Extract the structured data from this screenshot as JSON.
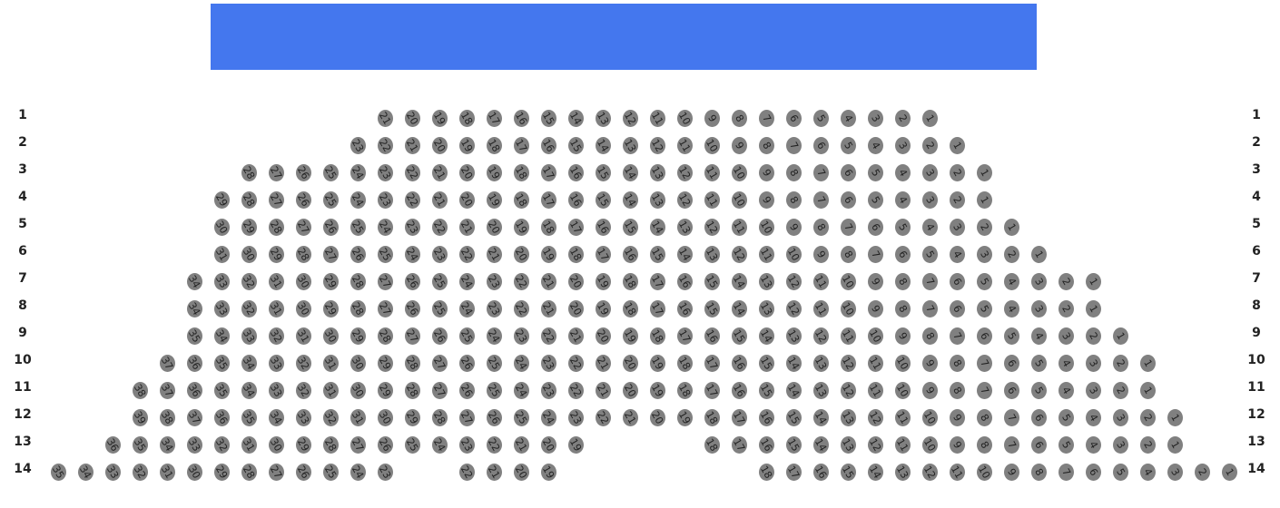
{
  "stage": {
    "color": "#4477EE"
  },
  "seat_color": "#808080",
  "rows": [
    {
      "label": "1",
      "seats": [
        null,
        null,
        null,
        null,
        null,
        null,
        null,
        null,
        null,
        null,
        null,
        null,
        21,
        20,
        19,
        18,
        17,
        16,
        15,
        14,
        13,
        12,
        11,
        10,
        9,
        8,
        7,
        6,
        5,
        4,
        3,
        2,
        1
      ]
    },
    {
      "label": "2",
      "seats": [
        null,
        null,
        null,
        null,
        null,
        null,
        null,
        null,
        null,
        null,
        null,
        23,
        22,
        21,
        20,
        19,
        18,
        17,
        16,
        15,
        14,
        13,
        12,
        11,
        10,
        9,
        8,
        7,
        6,
        5,
        4,
        3,
        2,
        1
      ]
    },
    {
      "label": "3",
      "seats": [
        null,
        null,
        null,
        null,
        null,
        null,
        null,
        28,
        27,
        26,
        25,
        24,
        23,
        22,
        21,
        20,
        19,
        18,
        17,
        16,
        15,
        14,
        13,
        12,
        11,
        10,
        9,
        8,
        7,
        6,
        5,
        4,
        3,
        2,
        1
      ]
    },
    {
      "label": "4",
      "seats": [
        null,
        null,
        null,
        null,
        null,
        null,
        29,
        28,
        27,
        26,
        25,
        24,
        23,
        22,
        21,
        20,
        19,
        18,
        17,
        16,
        15,
        14,
        13,
        12,
        11,
        10,
        9,
        8,
        7,
        6,
        5,
        4,
        3,
        2,
        1
      ]
    },
    {
      "label": "5",
      "seats": [
        null,
        null,
        null,
        null,
        null,
        null,
        30,
        29,
        28,
        27,
        26,
        25,
        24,
        23,
        22,
        21,
        20,
        19,
        18,
        17,
        16,
        15,
        14,
        13,
        12,
        11,
        10,
        9,
        8,
        7,
        6,
        5,
        4,
        3,
        2,
        1
      ]
    },
    {
      "label": "6",
      "seats": [
        null,
        null,
        null,
        null,
        null,
        null,
        31,
        30,
        29,
        28,
        27,
        26,
        25,
        24,
        23,
        22,
        21,
        20,
        19,
        18,
        17,
        16,
        15,
        14,
        13,
        12,
        11,
        10,
        9,
        8,
        7,
        6,
        5,
        4,
        3,
        2,
        1
      ]
    },
    {
      "label": "7",
      "seats": [
        null,
        null,
        null,
        null,
        null,
        34,
        33,
        32,
        31,
        30,
        29,
        28,
        27,
        26,
        25,
        24,
        23,
        22,
        21,
        20,
        19,
        18,
        17,
        16,
        15,
        14,
        13,
        12,
        11,
        10,
        9,
        8,
        7,
        6,
        5,
        4,
        3,
        2,
        1
      ]
    },
    {
      "label": "8",
      "seats": [
        null,
        null,
        null,
        null,
        null,
        34,
        33,
        32,
        31,
        30,
        29,
        28,
        27,
        26,
        25,
        24,
        23,
        22,
        21,
        20,
        19,
        18,
        17,
        16,
        15,
        14,
        13,
        12,
        11,
        10,
        9,
        8,
        7,
        6,
        5,
        4,
        3,
        2,
        1
      ]
    },
    {
      "label": "9",
      "seats": [
        null,
        null,
        null,
        null,
        null,
        35,
        34,
        33,
        32,
        31,
        30,
        29,
        28,
        27,
        26,
        25,
        24,
        23,
        22,
        21,
        20,
        19,
        18,
        17,
        16,
        15,
        14,
        13,
        12,
        11,
        10,
        9,
        8,
        7,
        6,
        5,
        4,
        3,
        2,
        1
      ]
    },
    {
      "label": "10",
      "seats": [
        null,
        null,
        null,
        null,
        37,
        36,
        35,
        34,
        33,
        32,
        31,
        30,
        29,
        28,
        27,
        26,
        25,
        24,
        23,
        22,
        21,
        20,
        19,
        18,
        17,
        16,
        15,
        14,
        13,
        12,
        11,
        10,
        9,
        8,
        7,
        6,
        5,
        4,
        3,
        2,
        1
      ]
    },
    {
      "label": "11",
      "seats": [
        null,
        null,
        null,
        38,
        37,
        36,
        35,
        34,
        33,
        32,
        31,
        30,
        29,
        28,
        27,
        26,
        25,
        24,
        23,
        22,
        21,
        20,
        19,
        18,
        17,
        16,
        15,
        14,
        13,
        12,
        11,
        10,
        9,
        8,
        7,
        6,
        5,
        4,
        3,
        2,
        1
      ]
    },
    {
      "label": "12",
      "seats": [
        null,
        null,
        null,
        39,
        38,
        37,
        36,
        35,
        34,
        33,
        32,
        31,
        30,
        29,
        28,
        27,
        26,
        25,
        24,
        23,
        22,
        21,
        20,
        19,
        18,
        17,
        16,
        15,
        14,
        13,
        12,
        11,
        10,
        9,
        8,
        7,
        6,
        5,
        4,
        3,
        2,
        1
      ]
    },
    {
      "label": "13",
      "seats": [
        null,
        null,
        36,
        35,
        34,
        33,
        32,
        31,
        30,
        29,
        28,
        27,
        26,
        25,
        24,
        23,
        22,
        21,
        20,
        19,
        null,
        null,
        null,
        null,
        18,
        17,
        16,
        15,
        14,
        13,
        12,
        11,
        10,
        9,
        8,
        7,
        6,
        5,
        4,
        3,
        2,
        1
      ]
    },
    {
      "label": "14",
      "seats": [
        35,
        34,
        33,
        32,
        31,
        30,
        29,
        28,
        27,
        26,
        25,
        24,
        23,
        null,
        null,
        22,
        21,
        20,
        19,
        null,
        null,
        null,
        null,
        null,
        null,
        null,
        18,
        17,
        16,
        15,
        14,
        13,
        12,
        11,
        10,
        9,
        8,
        7,
        6,
        5,
        4,
        3,
        2,
        1
      ]
    }
  ]
}
